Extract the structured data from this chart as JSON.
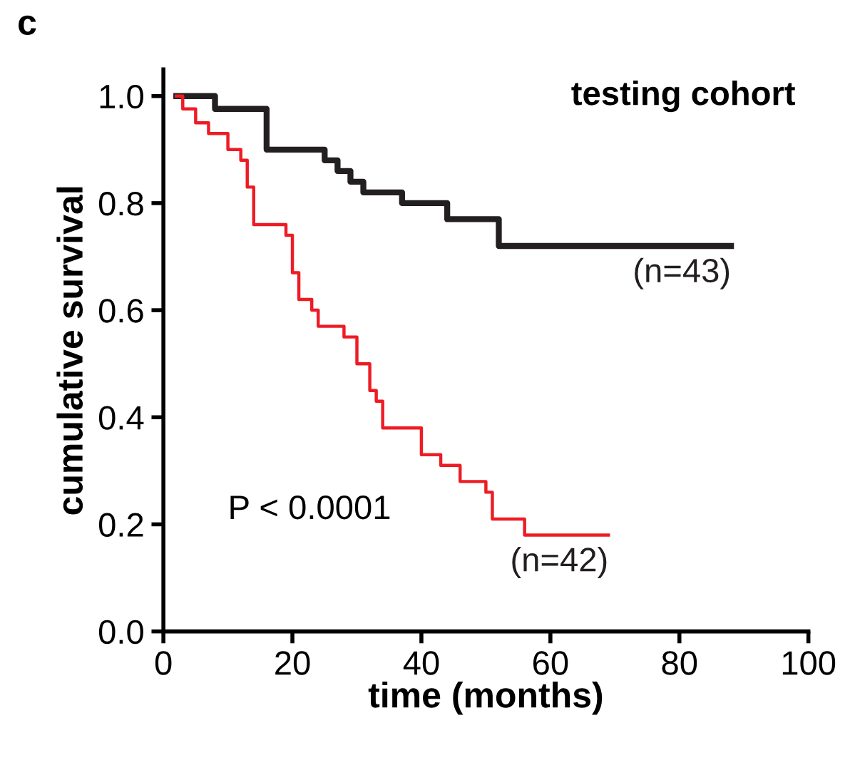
{
  "chart_data": {
    "type": "step",
    "title": "c",
    "xlabel": "time (months)",
    "ylabel": "cumulative survival",
    "xlim": [
      0,
      100
    ],
    "xticks": [
      0,
      20,
      40,
      60,
      80,
      100
    ],
    "ylim": [
      0,
      1.05
    ],
    "yticks": [
      {
        "value": 0,
        "label": "0.0"
      },
      0.2,
      0.4,
      0.6,
      0.8,
      {
        "value": 1,
        "label": "1.0"
      }
    ],
    "grid": false,
    "marker": "none",
    "line_style": "solid",
    "series": [
      {
        "color": "#231f20",
        "x": [
          2,
          8,
          16,
          25,
          27,
          29,
          31,
          37,
          44,
          52,
          88
        ],
        "values": [
          1.0,
          0.976,
          0.9,
          0.88,
          0.86,
          0.84,
          0.82,
          0.8,
          0.77,
          0.72,
          0.72
        ]
      },
      {
        "color": "#ed1c24",
        "x": [
          2,
          3,
          5,
          7,
          10,
          12,
          13,
          14,
          19,
          20,
          21,
          23,
          24,
          28,
          30,
          32,
          33,
          34,
          39,
          40,
          43,
          46,
          50,
          51,
          56,
          69
        ],
        "values": [
          1.0,
          0.976,
          0.95,
          0.93,
          0.9,
          0.88,
          0.83,
          0.76,
          0.74,
          0.67,
          0.62,
          0.6,
          0.57,
          0.55,
          0.5,
          0.45,
          0.43,
          0.38,
          0.38,
          0.33,
          0.31,
          0.28,
          0.26,
          0.21,
          0.18,
          0.18
        ]
      }
    ],
    "annotations": [
      "testing cohort",
      {
        "text": "(n=43)",
        "x": 88,
        "y": 0.72
      },
      {
        "text": "(n=42)",
        "x": 69,
        "y": 0.18
      },
      "P < 0.0001"
    ]
  }
}
